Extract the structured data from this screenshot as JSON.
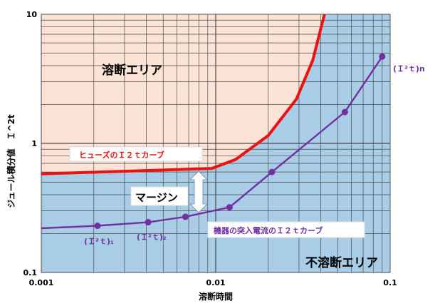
{
  "chart_data": {
    "type": "line",
    "xscale": "log",
    "yscale": "log",
    "xlim": [
      0.001,
      0.1
    ],
    "ylim": [
      0.1,
      10
    ],
    "xlabel": "溶断時間",
    "ylabel": "ジュール積分値　Ｉ^2t",
    "x_ticks": [
      {
        "value": 0.001,
        "label": "0.001"
      },
      {
        "value": 0.01,
        "label": "0.01"
      },
      {
        "value": 0.1,
        "label": "0.1"
      }
    ],
    "y_ticks": [
      {
        "value": 0.1,
        "label": "0.1"
      },
      {
        "value": 1,
        "label": "1"
      },
      {
        "value": 10,
        "label": "10"
      }
    ],
    "grid": true,
    "series": [
      {
        "name": "ヒューズのＩ２ｔカーブ",
        "color": "#ee1111",
        "x": [
          0.001,
          0.0095,
          0.013,
          0.02,
          0.029,
          0.036,
          0.042
        ],
        "y": [
          0.58,
          0.64,
          0.75,
          1.15,
          2.2,
          4.4,
          10
        ]
      },
      {
        "name": "機器の突入電流のＩ２ｔカーブ",
        "color": "#7030a0",
        "x": [
          0.001,
          0.0021,
          0.0041,
          0.0067,
          0.012,
          0.021,
          0.055,
          0.09
        ],
        "y": [
          0.22,
          0.23,
          0.245,
          0.27,
          0.32,
          0.6,
          1.75,
          4.7
        ],
        "markers": [
          {
            "x": 0.0021,
            "y": 0.23
          },
          {
            "x": 0.0041,
            "y": 0.245
          },
          {
            "x": 0.0067,
            "y": 0.27
          },
          {
            "x": 0.012,
            "y": 0.32
          },
          {
            "x": 0.021,
            "y": 0.6
          },
          {
            "x": 0.055,
            "y": 1.75
          },
          {
            "x": 0.09,
            "y": 4.7
          }
        ]
      }
    ],
    "regions": [
      {
        "name": "溶断エリア",
        "color": "#fbe4d6"
      },
      {
        "name": "不溶断エリア",
        "color": "#a9cde6"
      }
    ],
    "annotations": {
      "fuse_curve_label": "ヒューズのＩ２ｔカーブ",
      "device_curve_label": "機器の突入電流のＩ２ｔカーブ",
      "margin_label": "マージン",
      "point_label_1": "(Ｉ²ｔ)₁",
      "point_label_2": "(Ｉ²ｔ)₂",
      "point_label_n": "(Ｉ²ｔ)n",
      "region_melt": "溶断エリア",
      "region_no_melt": "不溶断エリア"
    }
  }
}
